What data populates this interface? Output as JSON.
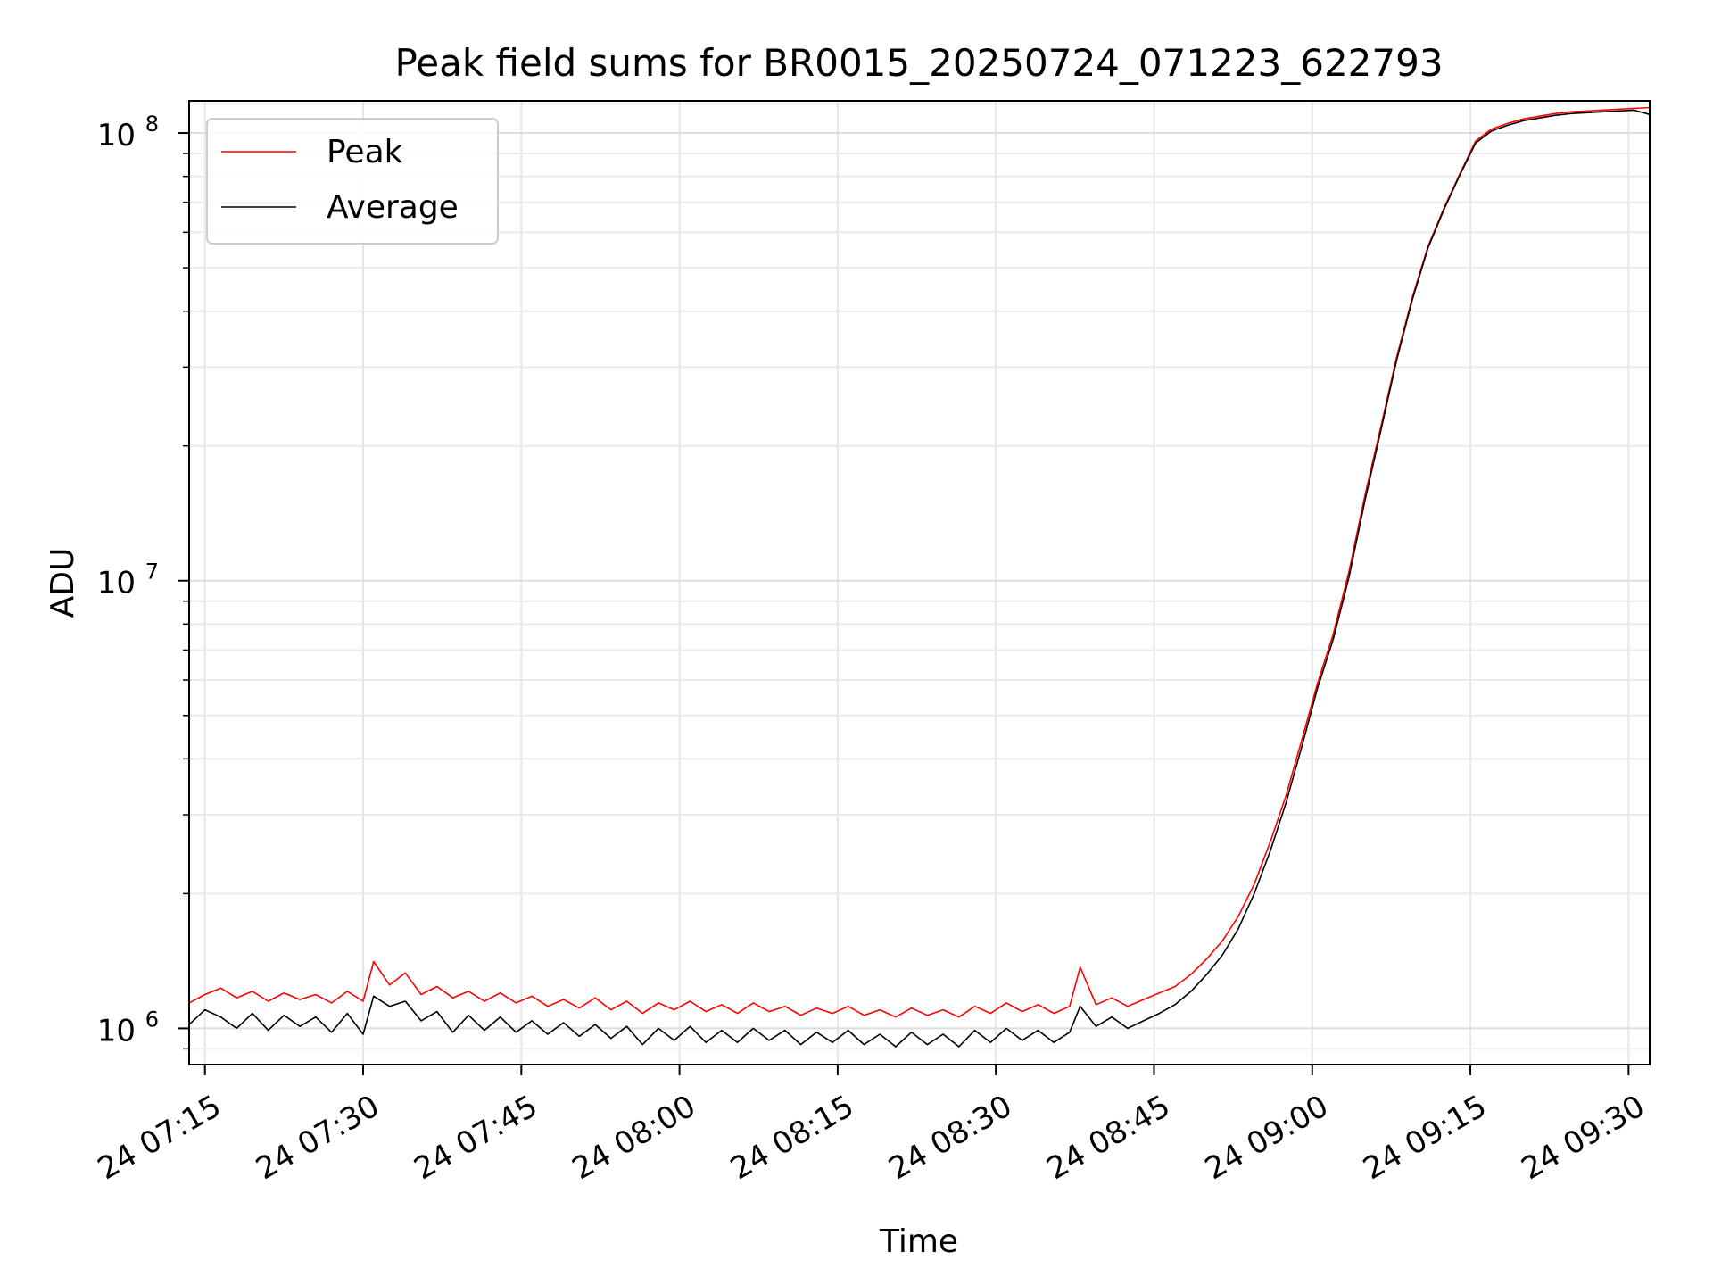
{
  "chart_data": {
    "type": "line",
    "title": "Peak field sums for BR0015_20250724_071223_622793",
    "xlabel": "Time",
    "ylabel": "ADU",
    "yscale": "log",
    "ylim": [
      830000,
      118000000
    ],
    "xlim": [
      "2025-07-24 07:13:30",
      "2025-07-24 09:32:00"
    ],
    "x_ticks": [
      {
        "time": "2025-07-24 07:15",
        "label": "24 07:15"
      },
      {
        "time": "2025-07-24 07:30",
        "label": "24 07:30"
      },
      {
        "time": "2025-07-24 07:45",
        "label": "24 07:45"
      },
      {
        "time": "2025-07-24 08:00",
        "label": "24 08:00"
      },
      {
        "time": "2025-07-24 08:15",
        "label": "24 08:15"
      },
      {
        "time": "2025-07-24 08:30",
        "label": "24 08:30"
      },
      {
        "time": "2025-07-24 08:45",
        "label": "24 08:45"
      },
      {
        "time": "2025-07-24 09:00",
        "label": "24 09:00"
      },
      {
        "time": "2025-07-24 09:15",
        "label": "24 09:15"
      },
      {
        "time": "2025-07-24 09:30",
        "label": "24 09:30"
      }
    ],
    "y_ticks": [
      {
        "value": 1000000,
        "base": "10",
        "exp": "6"
      },
      {
        "value": 10000000,
        "base": "10",
        "exp": "7"
      },
      {
        "value": 100000000,
        "base": "10",
        "exp": "8"
      }
    ],
    "grid": true,
    "legend": "upper-left",
    "series": [
      {
        "name": "Peak",
        "color": "#ff0000",
        "points": [
          [
            "2025-07-24 07:13:30",
            1140000
          ],
          [
            "2025-07-24 07:15:00",
            1190000
          ],
          [
            "2025-07-24 07:16:30",
            1230000
          ],
          [
            "2025-07-24 07:18:00",
            1170000
          ],
          [
            "2025-07-24 07:19:30",
            1210000
          ],
          [
            "2025-07-24 07:21:00",
            1150000
          ],
          [
            "2025-07-24 07:22:30",
            1200000
          ],
          [
            "2025-07-24 07:24:00",
            1160000
          ],
          [
            "2025-07-24 07:25:30",
            1190000
          ],
          [
            "2025-07-24 07:27:00",
            1140000
          ],
          [
            "2025-07-24 07:28:30",
            1210000
          ],
          [
            "2025-07-24 07:30:00",
            1150000
          ],
          [
            "2025-07-24 07:31:00",
            1410000
          ],
          [
            "2025-07-24 07:32:30",
            1250000
          ],
          [
            "2025-07-24 07:34:00",
            1330000
          ],
          [
            "2025-07-24 07:35:30",
            1190000
          ],
          [
            "2025-07-24 07:37:00",
            1240000
          ],
          [
            "2025-07-24 07:38:30",
            1170000
          ],
          [
            "2025-07-24 07:40:00",
            1210000
          ],
          [
            "2025-07-24 07:41:30",
            1150000
          ],
          [
            "2025-07-24 07:43:00",
            1200000
          ],
          [
            "2025-07-24 07:44:30",
            1140000
          ],
          [
            "2025-07-24 07:46:00",
            1180000
          ],
          [
            "2025-07-24 07:47:30",
            1120000
          ],
          [
            "2025-07-24 07:49:00",
            1160000
          ],
          [
            "2025-07-24 07:50:30",
            1110000
          ],
          [
            "2025-07-24 07:52:00",
            1170000
          ],
          [
            "2025-07-24 07:53:30",
            1100000
          ],
          [
            "2025-07-24 07:55:00",
            1150000
          ],
          [
            "2025-07-24 07:56:30",
            1080000
          ],
          [
            "2025-07-24 07:58:00",
            1140000
          ],
          [
            "2025-07-24 07:59:30",
            1100000
          ],
          [
            "2025-07-24 08:01:00",
            1150000
          ],
          [
            "2025-07-24 08:02:30",
            1090000
          ],
          [
            "2025-07-24 08:04:00",
            1130000
          ],
          [
            "2025-07-24 08:05:30",
            1080000
          ],
          [
            "2025-07-24 08:07:00",
            1140000
          ],
          [
            "2025-07-24 08:08:30",
            1090000
          ],
          [
            "2025-07-24 08:10:00",
            1120000
          ],
          [
            "2025-07-24 08:11:30",
            1070000
          ],
          [
            "2025-07-24 08:13:00",
            1110000
          ],
          [
            "2025-07-24 08:14:30",
            1080000
          ],
          [
            "2025-07-24 08:16:00",
            1120000
          ],
          [
            "2025-07-24 08:17:30",
            1070000
          ],
          [
            "2025-07-24 08:19:00",
            1100000
          ],
          [
            "2025-07-24 08:20:30",
            1060000
          ],
          [
            "2025-07-24 08:22:00",
            1110000
          ],
          [
            "2025-07-24 08:23:30",
            1070000
          ],
          [
            "2025-07-24 08:25:00",
            1100000
          ],
          [
            "2025-07-24 08:26:30",
            1060000
          ],
          [
            "2025-07-24 08:28:00",
            1120000
          ],
          [
            "2025-07-24 08:29:30",
            1080000
          ],
          [
            "2025-07-24 08:31:00",
            1140000
          ],
          [
            "2025-07-24 08:32:30",
            1090000
          ],
          [
            "2025-07-24 08:34:00",
            1130000
          ],
          [
            "2025-07-24 08:35:30",
            1080000
          ],
          [
            "2025-07-24 08:37:00",
            1120000
          ],
          [
            "2025-07-24 08:38:00",
            1370000
          ],
          [
            "2025-07-24 08:39:30",
            1130000
          ],
          [
            "2025-07-24 08:41:00",
            1170000
          ],
          [
            "2025-07-24 08:42:30",
            1120000
          ],
          [
            "2025-07-24 08:44:00",
            1160000
          ],
          [
            "2025-07-24 08:45:30",
            1200000
          ],
          [
            "2025-07-24 08:47:00",
            1240000
          ],
          [
            "2025-07-24 08:48:30",
            1320000
          ],
          [
            "2025-07-24 08:50:00",
            1430000
          ],
          [
            "2025-07-24 08:51:30",
            1570000
          ],
          [
            "2025-07-24 08:53:00",
            1780000
          ],
          [
            "2025-07-24 08:54:30",
            2100000
          ],
          [
            "2025-07-24 08:56:00",
            2600000
          ],
          [
            "2025-07-24 08:57:30",
            3300000
          ],
          [
            "2025-07-24 08:59:00",
            4400000
          ],
          [
            "2025-07-24 09:00:30",
            5900000
          ],
          [
            "2025-07-24 09:02:00",
            7600000
          ],
          [
            "2025-07-24 09:03:30",
            10500000
          ],
          [
            "2025-07-24 09:05:00",
            15500000
          ],
          [
            "2025-07-24 09:06:30",
            22000000
          ],
          [
            "2025-07-24 09:08:00",
            31500000
          ],
          [
            "2025-07-24 09:09:30",
            43000000
          ],
          [
            "2025-07-24 09:11:00",
            56000000
          ],
          [
            "2025-07-24 09:12:30",
            68000000
          ],
          [
            "2025-07-24 09:14:00",
            81000000
          ],
          [
            "2025-07-24 09:15:30",
            96000000
          ],
          [
            "2025-07-24 09:17:00",
            102000000
          ],
          [
            "2025-07-24 09:18:30",
            105000000
          ],
          [
            "2025-07-24 09:20:00",
            107500000
          ],
          [
            "2025-07-24 09:21:30",
            109000000
          ],
          [
            "2025-07-24 09:23:00",
            110500000
          ],
          [
            "2025-07-24 09:24:30",
            111500000
          ],
          [
            "2025-07-24 09:26:00",
            112000000
          ],
          [
            "2025-07-24 09:27:30",
            112500000
          ],
          [
            "2025-07-24 09:29:00",
            113000000
          ],
          [
            "2025-07-24 09:30:30",
            113500000
          ],
          [
            "2025-07-24 09:32:00",
            114000000
          ]
        ]
      },
      {
        "name": "Average",
        "color": "#000000",
        "points": [
          [
            "2025-07-24 07:13:30",
            1020000
          ],
          [
            "2025-07-24 07:15:00",
            1100000
          ],
          [
            "2025-07-24 07:16:30",
            1060000
          ],
          [
            "2025-07-24 07:18:00",
            1000000
          ],
          [
            "2025-07-24 07:19:30",
            1080000
          ],
          [
            "2025-07-24 07:21:00",
            990000
          ],
          [
            "2025-07-24 07:22:30",
            1070000
          ],
          [
            "2025-07-24 07:24:00",
            1010000
          ],
          [
            "2025-07-24 07:25:30",
            1060000
          ],
          [
            "2025-07-24 07:27:00",
            980000
          ],
          [
            "2025-07-24 07:28:30",
            1080000
          ],
          [
            "2025-07-24 07:30:00",
            970000
          ],
          [
            "2025-07-24 07:31:00",
            1180000
          ],
          [
            "2025-07-24 07:32:30",
            1120000
          ],
          [
            "2025-07-24 07:34:00",
            1150000
          ],
          [
            "2025-07-24 07:35:30",
            1040000
          ],
          [
            "2025-07-24 07:37:00",
            1090000
          ],
          [
            "2025-07-24 07:38:30",
            980000
          ],
          [
            "2025-07-24 07:40:00",
            1070000
          ],
          [
            "2025-07-24 07:41:30",
            990000
          ],
          [
            "2025-07-24 07:43:00",
            1060000
          ],
          [
            "2025-07-24 07:44:30",
            980000
          ],
          [
            "2025-07-24 07:46:00",
            1040000
          ],
          [
            "2025-07-24 07:47:30",
            970000
          ],
          [
            "2025-07-24 07:49:00",
            1030000
          ],
          [
            "2025-07-24 07:50:30",
            960000
          ],
          [
            "2025-07-24 07:52:00",
            1020000
          ],
          [
            "2025-07-24 07:53:30",
            950000
          ],
          [
            "2025-07-24 07:55:00",
            1010000
          ],
          [
            "2025-07-24 07:56:30",
            920000
          ],
          [
            "2025-07-24 07:58:00",
            1000000
          ],
          [
            "2025-07-24 07:59:30",
            940000
          ],
          [
            "2025-07-24 08:01:00",
            1010000
          ],
          [
            "2025-07-24 08:02:30",
            930000
          ],
          [
            "2025-07-24 08:04:00",
            990000
          ],
          [
            "2025-07-24 08:05:30",
            930000
          ],
          [
            "2025-07-24 08:07:00",
            1000000
          ],
          [
            "2025-07-24 08:08:30",
            940000
          ],
          [
            "2025-07-24 08:10:00",
            990000
          ],
          [
            "2025-07-24 08:11:30",
            920000
          ],
          [
            "2025-07-24 08:13:00",
            980000
          ],
          [
            "2025-07-24 08:14:30",
            930000
          ],
          [
            "2025-07-24 08:16:00",
            990000
          ],
          [
            "2025-07-24 08:17:30",
            920000
          ],
          [
            "2025-07-24 08:19:00",
            970000
          ],
          [
            "2025-07-24 08:20:30",
            910000
          ],
          [
            "2025-07-24 08:22:00",
            980000
          ],
          [
            "2025-07-24 08:23:30",
            920000
          ],
          [
            "2025-07-24 08:25:00",
            970000
          ],
          [
            "2025-07-24 08:26:30",
            910000
          ],
          [
            "2025-07-24 08:28:00",
            990000
          ],
          [
            "2025-07-24 08:29:30",
            930000
          ],
          [
            "2025-07-24 08:31:00",
            1000000
          ],
          [
            "2025-07-24 08:32:30",
            940000
          ],
          [
            "2025-07-24 08:34:00",
            990000
          ],
          [
            "2025-07-24 08:35:30",
            930000
          ],
          [
            "2025-07-24 08:37:00",
            980000
          ],
          [
            "2025-07-24 08:38:00",
            1120000
          ],
          [
            "2025-07-24 08:39:30",
            1010000
          ],
          [
            "2025-07-24 08:41:00",
            1060000
          ],
          [
            "2025-07-24 08:42:30",
            1000000
          ],
          [
            "2025-07-24 08:44:00",
            1040000
          ],
          [
            "2025-07-24 08:45:30",
            1080000
          ],
          [
            "2025-07-24 08:47:00",
            1130000
          ],
          [
            "2025-07-24 08:48:30",
            1210000
          ],
          [
            "2025-07-24 08:50:00",
            1320000
          ],
          [
            "2025-07-24 08:51:30",
            1460000
          ],
          [
            "2025-07-24 08:53:00",
            1670000
          ],
          [
            "2025-07-24 08:54:30",
            2000000
          ],
          [
            "2025-07-24 08:56:00",
            2480000
          ],
          [
            "2025-07-24 08:57:30",
            3180000
          ],
          [
            "2025-07-24 08:59:00",
            4250000
          ],
          [
            "2025-07-24 09:00:30",
            5750000
          ],
          [
            "2025-07-24 09:02:00",
            7400000
          ],
          [
            "2025-07-24 09:03:30",
            10200000
          ],
          [
            "2025-07-24 09:05:00",
            15100000
          ],
          [
            "2025-07-24 09:06:30",
            21600000
          ],
          [
            "2025-07-24 09:08:00",
            31000000
          ],
          [
            "2025-07-24 09:09:30",
            42500000
          ],
          [
            "2025-07-24 09:11:00",
            55500000
          ],
          [
            "2025-07-24 09:12:30",
            67500000
          ],
          [
            "2025-07-24 09:14:00",
            80500000
          ],
          [
            "2025-07-24 09:15:30",
            95000000
          ],
          [
            "2025-07-24 09:17:00",
            101000000
          ],
          [
            "2025-07-24 09:18:30",
            104000000
          ],
          [
            "2025-07-24 09:20:00",
            106500000
          ],
          [
            "2025-07-24 09:21:30",
            108000000
          ],
          [
            "2025-07-24 09:23:00",
            109500000
          ],
          [
            "2025-07-24 09:24:30",
            110500000
          ],
          [
            "2025-07-24 09:26:00",
            111000000
          ],
          [
            "2025-07-24 09:27:30",
            111500000
          ],
          [
            "2025-07-24 09:29:00",
            112000000
          ],
          [
            "2025-07-24 09:30:30",
            112500000
          ],
          [
            "2025-07-24 09:32:00",
            110000000
          ]
        ]
      }
    ]
  }
}
